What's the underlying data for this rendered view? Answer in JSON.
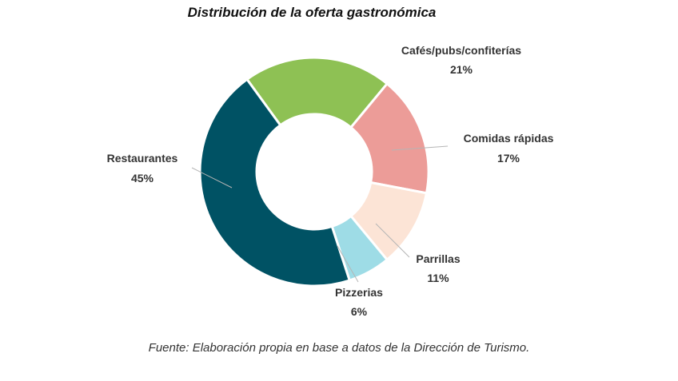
{
  "header": {
    "title": "Distribución de la oferta gastronómica"
  },
  "footer": {
    "source": "Fuente: Elaboración propia en base a datos de la Dirección de Turismo."
  },
  "chart_data": {
    "type": "pie",
    "donut": true,
    "title": "Distribución de la oferta gastronómica",
    "legend": "none (labels placed next to slices)",
    "slices": [
      {
        "label": "Cafés/pubs/confiterías",
        "value": 21,
        "value_label": "21%",
        "color": "#8ec154"
      },
      {
        "label": "Comidas rápidas",
        "value": 17,
        "value_label": "17%",
        "color": "#ec9c98"
      },
      {
        "label": "Parrillas",
        "value": 11,
        "value_label": "11%",
        "color": "#fce4d6"
      },
      {
        "label": "Pizzerias",
        "value": 6,
        "value_label": "6%",
        "color": "#9edce6"
      },
      {
        "label": "Restaurantes",
        "value": 45,
        "value_label": "45%",
        "color": "#005264"
      }
    ]
  }
}
